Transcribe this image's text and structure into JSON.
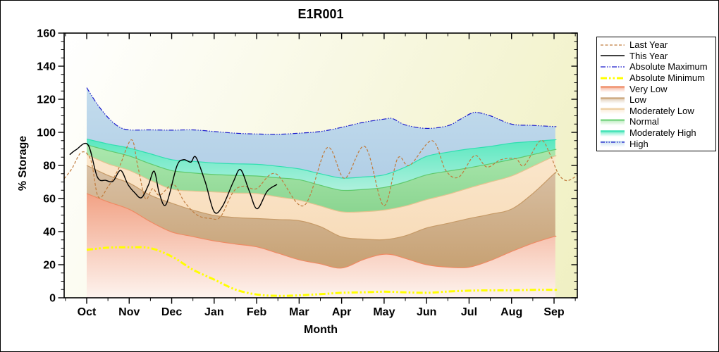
{
  "chart_data": {
    "type": "area",
    "title": "E1R001",
    "xlabel": "Month",
    "ylabel": "% Storage",
    "ylim": [
      0,
      160
    ],
    "y_major_step": 20,
    "y_minor_step": 5,
    "x_categories": [
      "Oct",
      "Nov",
      "Dec",
      "Jan",
      "Feb",
      "Mar",
      "Apr",
      "May",
      "Jun",
      "Jul",
      "Aug",
      "Sep"
    ],
    "y_tick_labels": [
      "0",
      "20",
      "40",
      "60",
      "80",
      "100",
      "120",
      "140",
      "160"
    ],
    "plot_bg": {
      "from": "#ffffff",
      "to": "#f0f0c2"
    },
    "styles": {
      "last_year": {
        "color": "#c07c3e",
        "dash": "4 2.5",
        "width": 1.2
      },
      "this_year": {
        "color": "#000000",
        "dash": "",
        "width": 1.4
      },
      "abs_max": {
        "color": "#1a1acc",
        "dash": "7 2 1.5 2 1.5 2",
        "width": 1.2
      },
      "abs_min": {
        "color": "#ffff00",
        "dash": "9 3 2.5 3 2.5 3",
        "width": 3
      },
      "very_low": {
        "fill": "#f2a285",
        "fill2": "#fdf3ee",
        "line": "#ef8a63"
      },
      "low": {
        "fill": "#d9c1a6",
        "fill2": "#c7a173",
        "line": "#c69a67"
      },
      "moderately_low": {
        "fill": "#fae6cb",
        "fill2": "#f8dcba",
        "line": "#e5c490"
      },
      "normal": {
        "fill": "#ace8ae",
        "fill2": "#8bd591",
        "line": "#5fc96d"
      },
      "moderately_high": {
        "fill": "#59e8bf",
        "fill2": "#aef0dd",
        "line": "#2fdfb0"
      },
      "high": {
        "fill": "#c3dced",
        "fill2": "#b2cfe6",
        "line": "#1a1acc",
        "line_dash": "6 2 1.5 2 1.5 2"
      }
    },
    "series": {
      "abs_max": [
        [
          0,
          127
        ],
        [
          0.25,
          117
        ],
        [
          0.5,
          109
        ],
        [
          0.75,
          103.5
        ],
        [
          1,
          101.5
        ],
        [
          1.5,
          101.5
        ],
        [
          2,
          101.3
        ],
        [
          2.5,
          101.5
        ],
        [
          3,
          100.5
        ],
        [
          3.5,
          99.5
        ],
        [
          4,
          99
        ],
        [
          4.5,
          98.8
        ],
        [
          5,
          99.5
        ],
        [
          5.5,
          100.5
        ],
        [
          6,
          103
        ],
        [
          6.5,
          106
        ],
        [
          7,
          108
        ],
        [
          7.2,
          108.3
        ],
        [
          7.5,
          104.5
        ],
        [
          8,
          102.4
        ],
        [
          8.5,
          104
        ],
        [
          8.8,
          108
        ],
        [
          9.05,
          111.5
        ],
        [
          9.2,
          112
        ],
        [
          9.5,
          110
        ],
        [
          10,
          105
        ],
        [
          10.5,
          104.2
        ],
        [
          11,
          103.5
        ]
      ],
      "moderately_high": [
        [
          0,
          96
        ],
        [
          0.5,
          93
        ],
        [
          1,
          90.5
        ],
        [
          1.5,
          87
        ],
        [
          2,
          83.5
        ],
        [
          2.5,
          82.5
        ],
        [
          3,
          81.5
        ],
        [
          3.5,
          81
        ],
        [
          4,
          80.7
        ],
        [
          4.5,
          79.5
        ],
        [
          5,
          77.9
        ],
        [
          5.5,
          75
        ],
        [
          6,
          72.4
        ],
        [
          6.5,
          73
        ],
        [
          7,
          74.3
        ],
        [
          7.5,
          79
        ],
        [
          8,
          85.5
        ],
        [
          8.5,
          88
        ],
        [
          9,
          90
        ],
        [
          9.5,
          91.5
        ],
        [
          10,
          93.5
        ],
        [
          10.5,
          94.5
        ],
        [
          11,
          95.5
        ]
      ],
      "normal": [
        [
          0,
          92.5
        ],
        [
          0.5,
          89
        ],
        [
          1,
          85.7
        ],
        [
          1.5,
          81
        ],
        [
          2,
          76.9
        ],
        [
          2.5,
          75.5
        ],
        [
          3,
          74.5
        ],
        [
          3.5,
          74
        ],
        [
          4,
          73.6
        ],
        [
          4.5,
          72.5
        ],
        [
          5,
          71.4
        ],
        [
          5.5,
          68
        ],
        [
          6,
          65
        ],
        [
          6.5,
          65.5
        ],
        [
          7,
          66.7
        ],
        [
          7.5,
          70
        ],
        [
          8,
          74.3
        ],
        [
          8.5,
          76.5
        ],
        [
          9,
          78.6
        ],
        [
          9.5,
          81
        ],
        [
          10,
          83.6
        ],
        [
          10.5,
          86.5
        ],
        [
          11,
          89.5
        ]
      ],
      "moderately_low": [
        [
          0,
          86.5
        ],
        [
          0.5,
          81
        ],
        [
          1,
          77
        ],
        [
          1.5,
          71
        ],
        [
          2,
          65.7
        ],
        [
          2.5,
          64.5
        ],
        [
          3,
          64
        ],
        [
          3.5,
          63.3
        ],
        [
          4,
          63
        ],
        [
          4.5,
          61
        ],
        [
          5,
          59
        ],
        [
          5.5,
          55.5
        ],
        [
          6,
          52
        ],
        [
          6.5,
          52
        ],
        [
          7,
          53
        ],
        [
          7.5,
          55.5
        ],
        [
          8,
          59.3
        ],
        [
          8.5,
          62.5
        ],
        [
          9,
          66.4
        ],
        [
          9.5,
          70
        ],
        [
          10,
          73.6
        ],
        [
          10.5,
          79.5
        ],
        [
          11,
          85.5
        ]
      ],
      "low": [
        [
          0,
          80
        ],
        [
          0.5,
          74
        ],
        [
          1,
          69.3
        ],
        [
          1.5,
          62
        ],
        [
          2,
          57.2
        ],
        [
          2.5,
          53
        ],
        [
          3,
          49.8
        ],
        [
          3.5,
          48.5
        ],
        [
          4,
          47.9
        ],
        [
          4.5,
          47.3
        ],
        [
          5,
          46.6
        ],
        [
          5.5,
          43
        ],
        [
          6,
          36.8
        ],
        [
          6.5,
          35.5
        ],
        [
          7,
          35.1
        ],
        [
          7.5,
          37.5
        ],
        [
          8,
          42.2
        ],
        [
          8.5,
          45
        ],
        [
          9,
          47.9
        ],
        [
          9.5,
          50.5
        ],
        [
          10,
          53.6
        ],
        [
          10.5,
          63
        ],
        [
          11,
          75
        ]
      ],
      "very_low": [
        [
          0,
          63
        ],
        [
          0.5,
          58
        ],
        [
          1,
          53.5
        ],
        [
          1.5,
          46
        ],
        [
          2,
          39.8
        ],
        [
          2.5,
          37
        ],
        [
          3,
          34.4
        ],
        [
          3.5,
          32.5
        ],
        [
          4,
          30.8
        ],
        [
          4.5,
          27
        ],
        [
          5,
          23
        ],
        [
          5.5,
          20.5
        ],
        [
          6,
          18
        ],
        [
          6.5,
          23
        ],
        [
          6.9,
          26
        ],
        [
          7.2,
          26
        ],
        [
          7.6,
          23
        ],
        [
          8,
          20
        ],
        [
          8.5,
          18.5
        ],
        [
          9,
          18.5
        ],
        [
          9.5,
          22.5
        ],
        [
          10,
          28
        ],
        [
          10.5,
          33
        ],
        [
          11,
          37
        ]
      ],
      "abs_min": [
        [
          0,
          29
        ],
        [
          0.5,
          30.3
        ],
        [
          1,
          30.5
        ],
        [
          1.5,
          30
        ],
        [
          2,
          25
        ],
        [
          2.5,
          17
        ],
        [
          3,
          11
        ],
        [
          3.5,
          5
        ],
        [
          4,
          2
        ],
        [
          4.5,
          1.2
        ],
        [
          5,
          1.5
        ],
        [
          5.5,
          2.2
        ],
        [
          6,
          3
        ],
        [
          6.5,
          3.3
        ],
        [
          7,
          3.7
        ],
        [
          7.5,
          3.3
        ],
        [
          8,
          3
        ],
        [
          8.5,
          3.8
        ],
        [
          9,
          4.3
        ],
        [
          9.5,
          4.5
        ],
        [
          10,
          4.5
        ],
        [
          10.5,
          4.8
        ],
        [
          11,
          4.8
        ]
      ],
      "last_year": [
        [
          -0.53,
          72
        ],
        [
          -0.35,
          78
        ],
        [
          -0.12,
          88
        ],
        [
          0.1,
          83
        ],
        [
          0.27,
          61
        ],
        [
          0.5,
          67
        ],
        [
          0.75,
          78
        ],
        [
          1.05,
          95.5
        ],
        [
          1.2,
          80
        ],
        [
          1.38,
          60
        ],
        [
          1.55,
          66
        ],
        [
          1.72,
          62
        ],
        [
          2.04,
          68.5
        ],
        [
          2.3,
          58
        ],
        [
          2.6,
          50
        ],
        [
          2.9,
          48
        ],
        [
          3.15,
          49
        ],
        [
          3.45,
          64
        ],
        [
          3.7,
          67.5
        ],
        [
          4,
          66
        ],
        [
          4.45,
          75
        ],
        [
          5.11,
          55.7
        ],
        [
          5.66,
          90.7
        ],
        [
          6.07,
          72.2
        ],
        [
          6.55,
          91.4
        ],
        [
          6.99,
          55.7
        ],
        [
          7.32,
          84.3
        ],
        [
          7.6,
          80
        ],
        [
          8.13,
          95
        ],
        [
          8.45,
          77
        ],
        [
          8.76,
          73
        ],
        [
          9.13,
          86
        ],
        [
          9.42,
          79
        ],
        [
          9.75,
          83.5
        ],
        [
          10.1,
          84
        ],
        [
          10.3,
          80
        ],
        [
          10.68,
          95
        ],
        [
          10.9,
          87
        ],
        [
          11.1,
          75
        ],
        [
          11.3,
          70.8
        ],
        [
          11.55,
          74
        ]
      ],
      "this_year": [
        [
          -0.4,
          86.5
        ],
        [
          -0.25,
          89.5
        ],
        [
          0.03,
          92.5
        ],
        [
          0.25,
          73
        ],
        [
          0.45,
          71
        ],
        [
          0.62,
          70.5
        ],
        [
          0.8,
          77
        ],
        [
          0.97,
          68.5
        ],
        [
          1.13,
          63.5
        ],
        [
          1.29,
          60.5
        ],
        [
          1.45,
          68
        ],
        [
          1.59,
          76.5
        ],
        [
          1.71,
          63
        ],
        [
          1.87,
          56.5
        ],
        [
          2.12,
          79.5
        ],
        [
          2.28,
          83.5
        ],
        [
          2.45,
          82
        ],
        [
          2.57,
          85
        ],
        [
          2.79,
          70
        ],
        [
          3,
          52
        ],
        [
          3.2,
          55.5
        ],
        [
          3.45,
          70
        ],
        [
          3.62,
          77.5
        ],
        [
          3.82,
          65
        ],
        [
          4.01,
          53.8
        ],
        [
          4.25,
          64.5
        ],
        [
          4.48,
          68.5
        ]
      ]
    },
    "bands": [
      {
        "key": "very_low",
        "label": "Very Low",
        "top": "very_low",
        "bottom": null
      },
      {
        "key": "low",
        "label": "Low",
        "top": "low",
        "bottom": "very_low"
      },
      {
        "key": "moderately_low",
        "label": "Moderately Low",
        "top": "moderately_low",
        "bottom": "low"
      },
      {
        "key": "normal",
        "label": "Normal",
        "top": "normal",
        "bottom": "moderately_low"
      },
      {
        "key": "moderately_high",
        "label": "Moderately High",
        "top": "moderately_high",
        "bottom": "normal"
      },
      {
        "key": "high",
        "label": "High",
        "top": "abs_max",
        "bottom": "moderately_high"
      }
    ],
    "lines": [
      {
        "key": "abs_max",
        "label": "Absolute Maximum"
      },
      {
        "key": "abs_min",
        "label": "Absolute Minimum"
      },
      {
        "key": "last_year",
        "label": "Last Year"
      },
      {
        "key": "this_year",
        "label": "This Year"
      }
    ],
    "legend": {
      "position": "right",
      "items": [
        {
          "label": "Last Year",
          "swatch": "line",
          "ref": "last_year"
        },
        {
          "label": "This Year",
          "swatch": "line",
          "ref": "this_year"
        },
        {
          "label": "Absolute Maximum",
          "swatch": "line",
          "ref": "abs_max"
        },
        {
          "label": "Absolute Minimum",
          "swatch": "line",
          "ref": "abs_min"
        },
        {
          "label": "Very Low",
          "swatch": "band",
          "ref": "very_low"
        },
        {
          "label": "Low",
          "swatch": "band",
          "ref": "low"
        },
        {
          "label": "Moderately Low",
          "swatch": "band",
          "ref": "moderately_low"
        },
        {
          "label": "Normal",
          "swatch": "band",
          "ref": "normal"
        },
        {
          "label": "Moderately High",
          "swatch": "band",
          "ref": "moderately_high"
        },
        {
          "label": "High",
          "swatch": "band",
          "ref": "high"
        }
      ]
    }
  }
}
